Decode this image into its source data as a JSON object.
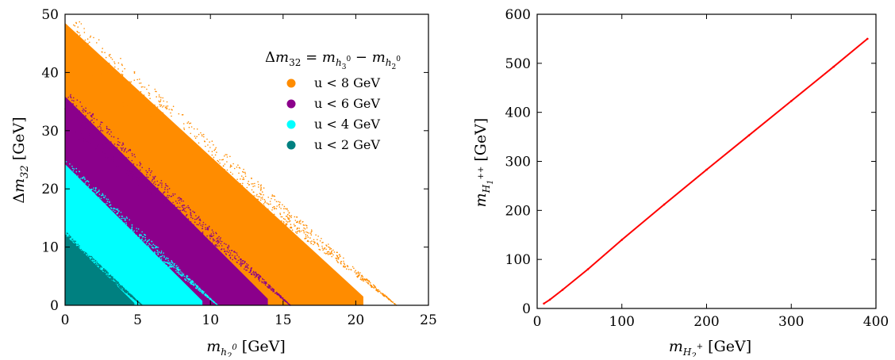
{
  "chart_data": [
    {
      "type": "scatter",
      "title": "",
      "xlabel": "m_h2^0 [GeV]",
      "ylabel": "Δm_32 [GeV]",
      "xlim": [
        0,
        25
      ],
      "ylim": [
        0,
        50
      ],
      "xticks": [
        "0",
        "5",
        "10",
        "15",
        "20",
        "25"
      ],
      "yticks": [
        "0",
        "10",
        "20",
        "30",
        "40",
        "50"
      ],
      "grid": false,
      "legend_position": "top-right",
      "legend_title": "Δm_32 = m_h3^0 − m_h2^0",
      "series": [
        {
          "name": "u < 8 GeV",
          "color": "#ff8c00",
          "description_region": {
            "y_intercept": 50,
            "x_intercept": 22.8
          }
        },
        {
          "name": "u < 6 GeV",
          "color": "#8b008b",
          "description_region": {
            "y_intercept": 37,
            "x_intercept": 15.5
          }
        },
        {
          "name": "u < 4 GeV",
          "color": "#00ffff",
          "description_region": {
            "y_intercept": 25,
            "x_intercept": 10.5
          }
        },
        {
          "name": "u < 2 GeV",
          "color": "#008080",
          "description_region": {
            "y_intercept": 12.5,
            "x_intercept": 5.3
          }
        }
      ]
    },
    {
      "type": "scatter",
      "title": "",
      "xlabel": "m_H2^+ [GeV]",
      "ylabel": "m_H1^++ [GeV]",
      "xlim": [
        0,
        400
      ],
      "ylim": [
        0,
        600
      ],
      "xticks": [
        "0",
        "100",
        "200",
        "300",
        "400"
      ],
      "yticks": [
        "0",
        "100",
        "200",
        "300",
        "400",
        "500",
        "600"
      ],
      "grid": false,
      "series": [
        {
          "color": "#ff0000",
          "x": [
            8,
            15,
            30,
            60,
            100,
            150,
            200,
            250,
            300,
            350,
            390
          ],
          "y": [
            10,
            18,
            38,
            80,
            140,
            212,
            283,
            353,
            423,
            493,
            550
          ]
        }
      ]
    }
  ]
}
